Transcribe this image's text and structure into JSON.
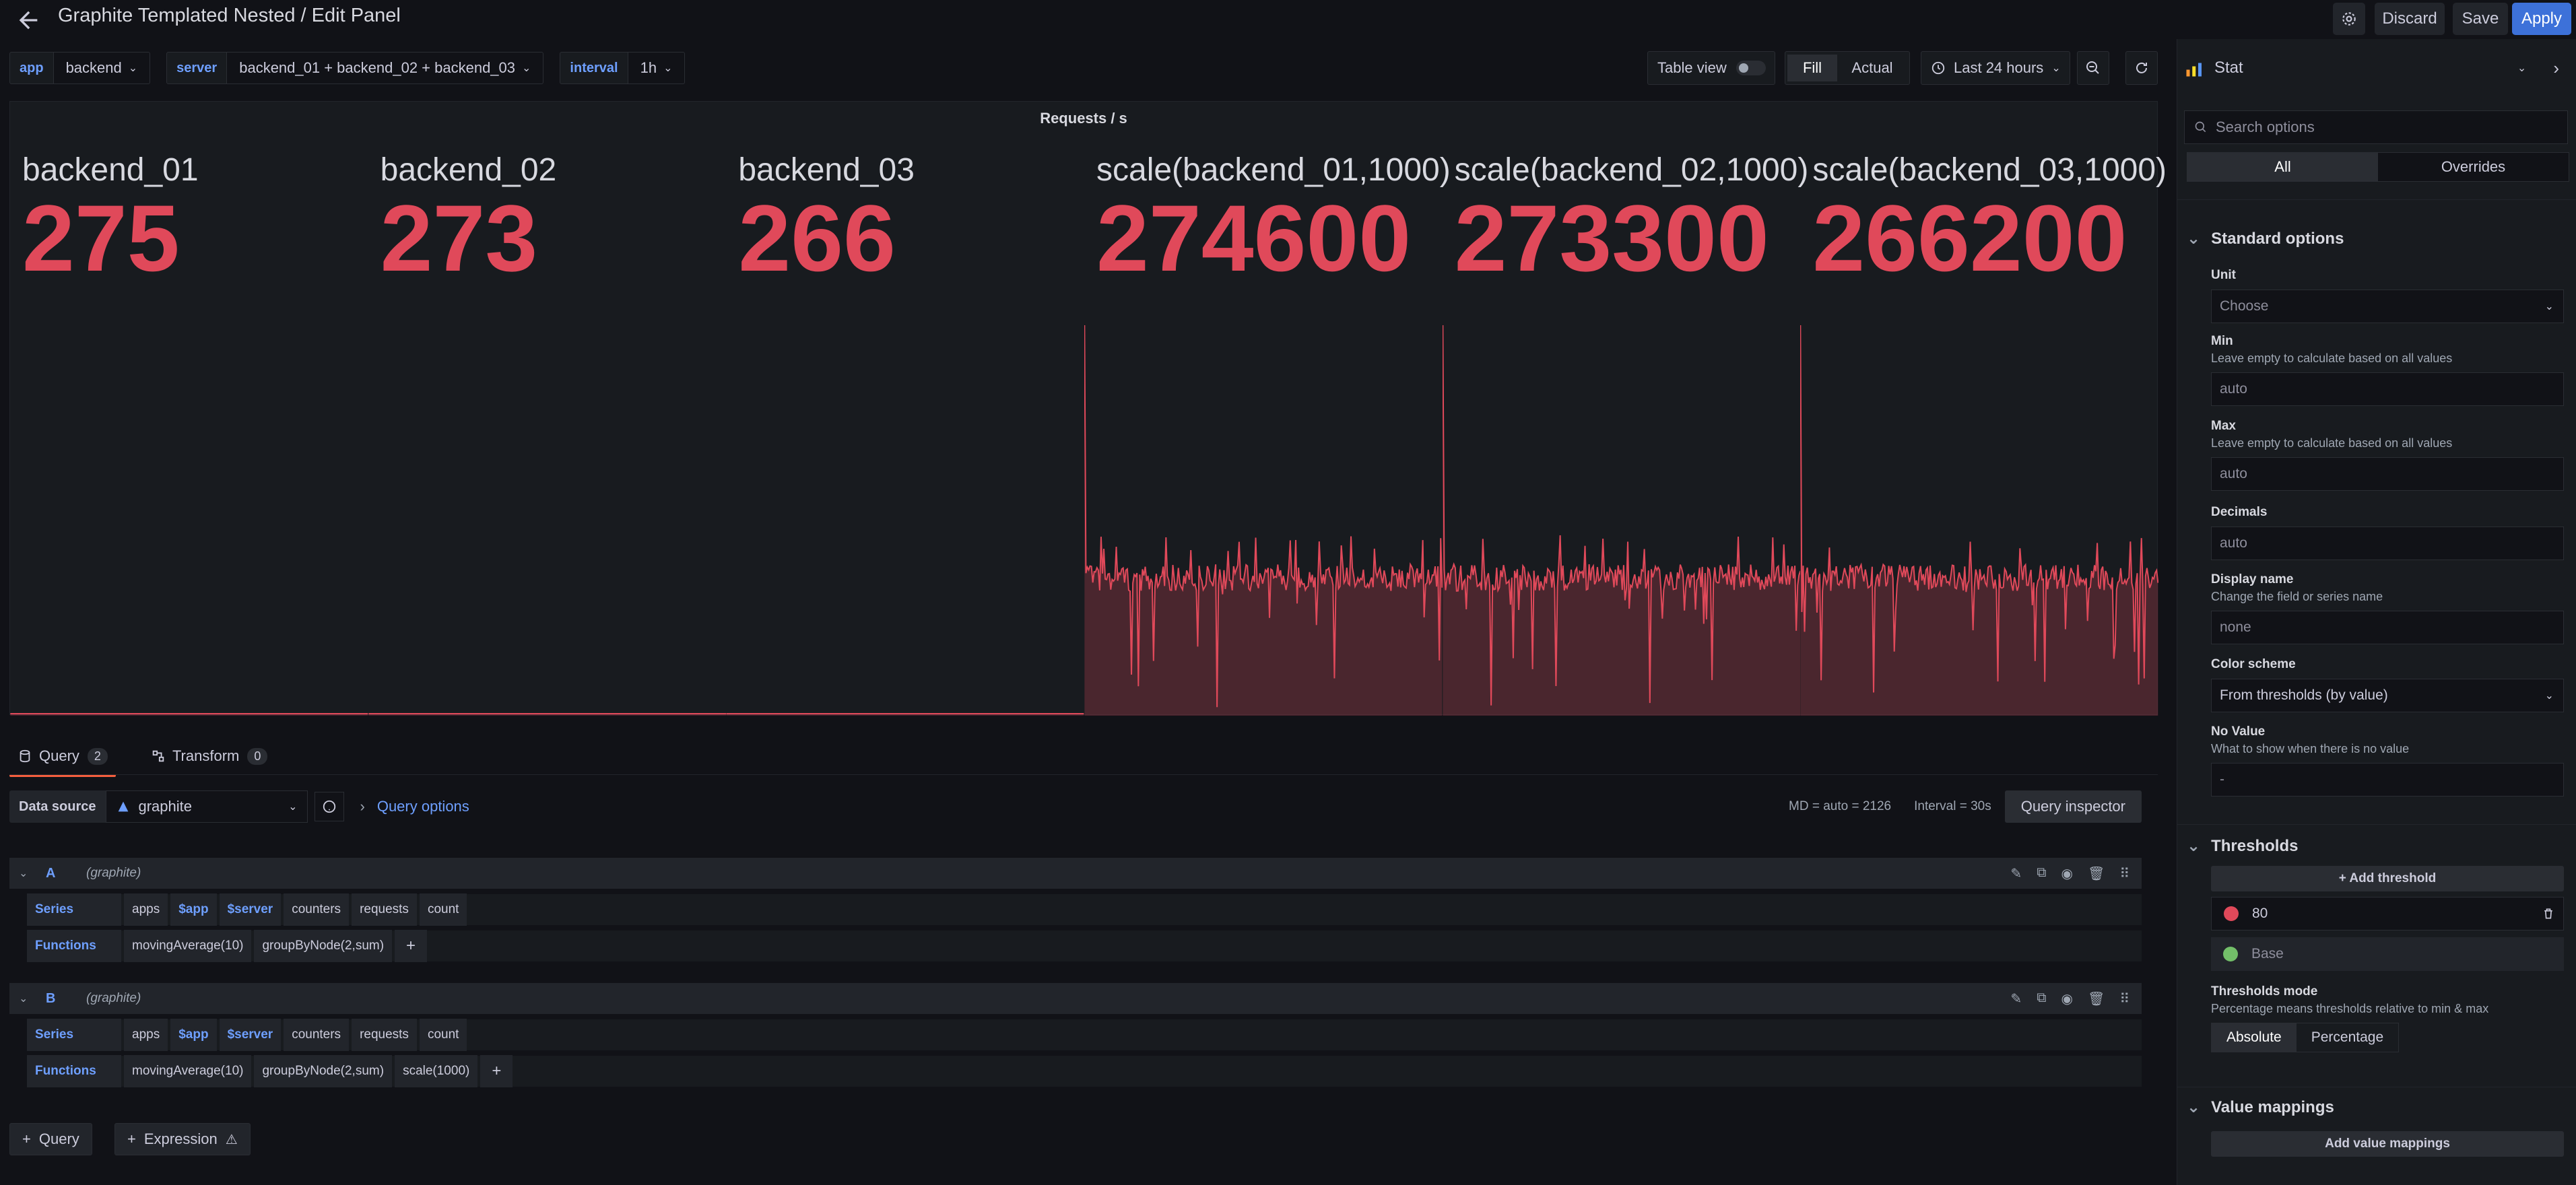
{
  "header": {
    "title": "Graphite Templated Nested / Edit Panel",
    "discard": "Discard",
    "save": "Save",
    "apply": "Apply"
  },
  "variables": [
    {
      "label": "app",
      "value": "backend"
    },
    {
      "label": "server",
      "value": "backend_01 + backend_02 + backend_03"
    },
    {
      "label": "interval",
      "value": "1h"
    }
  ],
  "toolbar": {
    "table_view": "Table view",
    "fill": "Fill",
    "actual": "Actual",
    "time_range": "Last 24 hours"
  },
  "panel": {
    "title": "Requests / s",
    "color": "#e0495a",
    "stats": [
      {
        "name": "backend_01",
        "value": "275"
      },
      {
        "name": "backend_02",
        "value": "273"
      },
      {
        "name": "backend_03",
        "value": "266"
      },
      {
        "name": "scale(backend_01,1000)",
        "value": "274600"
      },
      {
        "name": "scale(backend_02,1000)",
        "value": "273300"
      },
      {
        "name": "scale(backend_03,1000)",
        "value": "266200"
      }
    ]
  },
  "tabs": {
    "query": "Query",
    "query_count": "2",
    "transform": "Transform",
    "transform_count": "0"
  },
  "datasource": {
    "label": "Data source",
    "value": "graphite",
    "query_options": "Query options",
    "md": "MD = auto = 2126",
    "interval": "Interval = 30s",
    "inspector": "Query inspector"
  },
  "queries": [
    {
      "letter": "A",
      "ds": "(graphite)",
      "series_label": "Series",
      "series": [
        "apps",
        "$app",
        "$server",
        "counters",
        "requests",
        "count"
      ],
      "functions_label": "Functions",
      "functions": [
        "movingAverage(10)",
        "groupByNode(2,sum)"
      ]
    },
    {
      "letter": "B",
      "ds": "(graphite)",
      "series_label": "Series",
      "series": [
        "apps",
        "$app",
        "$server",
        "counters",
        "requests",
        "count"
      ],
      "functions_label": "Functions",
      "functions": [
        "movingAverage(10)",
        "groupByNode(2,sum)",
        "scale(1000)"
      ]
    }
  ],
  "buttons": {
    "add_query": "Query",
    "add_expression": "Expression"
  },
  "options": {
    "viz": "Stat",
    "search_placeholder": "Search options",
    "all": "All",
    "overrides": "Overrides",
    "standard": "Standard options",
    "unit_label": "Unit",
    "unit_placeholder": "Choose",
    "min_label": "Min",
    "min_desc": "Leave empty to calculate based on all values",
    "min_placeholder": "auto",
    "max_label": "Max",
    "max_desc": "Leave empty to calculate based on all values",
    "max_placeholder": "auto",
    "decimals_label": "Decimals",
    "decimals_placeholder": "auto",
    "display_name_label": "Display name",
    "display_name_desc": "Change the field or series name",
    "display_name_placeholder": "none",
    "color_scheme_label": "Color scheme",
    "color_scheme_value": "From thresholds (by value)",
    "novalue_label": "No Value",
    "novalue_desc": "What to show when there is no value",
    "novalue_placeholder": "-",
    "thresholds": "Thresholds",
    "add_threshold": "+ Add threshold",
    "threshold_value": "80",
    "threshold_base": "Base",
    "thresholds_mode_label": "Thresholds mode",
    "thresholds_mode_desc": "Percentage means thresholds relative to min & max",
    "absolute": "Absolute",
    "percentage": "Percentage",
    "value_mappings": "Value mappings",
    "add_value_mappings": "Add value mappings"
  }
}
